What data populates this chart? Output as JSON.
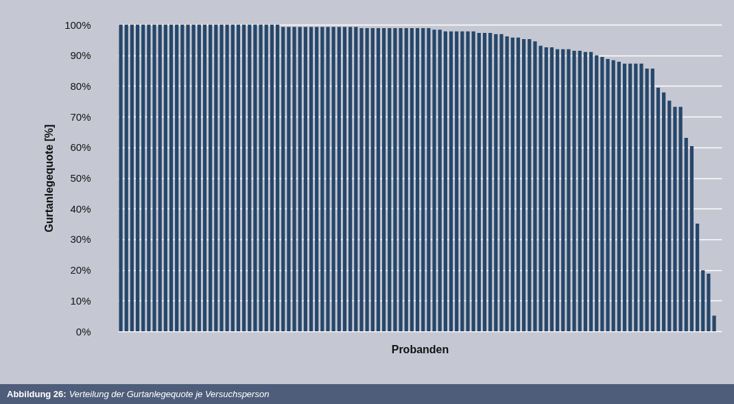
{
  "chart_data": {
    "type": "bar",
    "categories": [
      null,
      null,
      null,
      null,
      null,
      null,
      null,
      null,
      null,
      null,
      null,
      null,
      null,
      null,
      null,
      null,
      null,
      null,
      null,
      null,
      null,
      null,
      null,
      null,
      null,
      null,
      null,
      null,
      null,
      null,
      null,
      null,
      null,
      null,
      null,
      null,
      null,
      null,
      null,
      null,
      null,
      null,
      null,
      null,
      null,
      null,
      null,
      null,
      null,
      null,
      null,
      null,
      null,
      null,
      null,
      null,
      null,
      null,
      null,
      null,
      null,
      null,
      null,
      null,
      null,
      null,
      null,
      null,
      null,
      null,
      null,
      null,
      null,
      null,
      null,
      null,
      null,
      null,
      null,
      null,
      null,
      null,
      null,
      null,
      null,
      null,
      null,
      null,
      null,
      null,
      null,
      null,
      null,
      null,
      null,
      null,
      null,
      null,
      null,
      null,
      null,
      null,
      null,
      null,
      null,
      null,
      null
    ],
    "values": [
      100,
      100,
      100,
      100,
      100,
      100,
      100,
      100,
      100,
      100,
      100,
      100,
      100,
      100,
      100,
      100,
      100,
      100,
      100,
      100,
      100,
      100,
      100,
      100,
      100,
      100,
      100,
      100,
      100,
      99.3,
      99.3,
      99.3,
      99.3,
      99.3,
      99.3,
      99.3,
      99.3,
      99.3,
      99.3,
      99.3,
      99.3,
      99.3,
      99.3,
      98.9,
      98.9,
      98.9,
      98.9,
      98.9,
      98.9,
      98.9,
      98.9,
      98.9,
      98.9,
      98.9,
      98.9,
      98.9,
      98.4,
      98.4,
      97.8,
      97.8,
      97.8,
      97.8,
      97.8,
      97.8,
      97.3,
      97.3,
      97.3,
      96.9,
      96.9,
      96.2,
      95.8,
      95.8,
      95.3,
      95.3,
      94.6,
      93.1,
      92.6,
      92.6,
      92,
      92,
      92,
      91.5,
      91.5,
      91.1,
      91.1,
      90,
      89.5,
      88.8,
      88.4,
      87.9,
      87.3,
      87.3,
      87.3,
      87.3,
      85.7,
      85.7,
      79.5,
      77.9,
      75.2,
      73.2,
      73.2,
      63.1,
      60.4,
      35.1,
      19.9,
      18.8,
      5.1
    ],
    "color": "#26476a",
    "xlabel": "Probanden",
    "ylabel": "Gurtanlegequote [%]",
    "ylim": [
      0,
      100
    ],
    "yticks": [
      {
        "value": 0,
        "label": "0%"
      },
      {
        "value": 10,
        "label": "10%"
      },
      {
        "value": 20,
        "label": "20%"
      },
      {
        "value": 30,
        "label": "30%"
      },
      {
        "value": 40,
        "label": "40%"
      },
      {
        "value": 50,
        "label": "50%"
      },
      {
        "value": 60,
        "label": "60%"
      },
      {
        "value": 70,
        "label": "70%"
      },
      {
        "value": 80,
        "label": "80%"
      },
      {
        "value": 90,
        "label": "90%"
      },
      {
        "value": 100,
        "label": "100%"
      }
    ],
    "grid": "y",
    "tick_labels": "y",
    "annotations": [
      "Abbildung 26:",
      "Verteilung der Gurtanlegequote je Versuchsperson"
    ]
  }
}
